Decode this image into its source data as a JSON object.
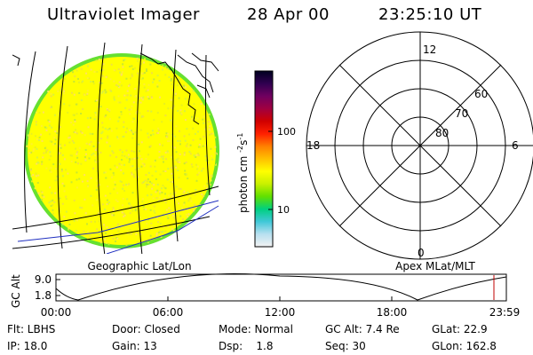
{
  "header": {
    "instrument": "Ultraviolet Imager",
    "date": "28 Apr 00",
    "time": "23:25:10 UT"
  },
  "colorbar": {
    "unit_label": "photon cm",
    "unit_exp1": "-2",
    "unit_s": "s",
    "unit_exp2": "-1",
    "tick_100": "100",
    "tick_10": "10",
    "stops": [
      "#f2f2f2",
      "#b8e0f0",
      "#40c8d8",
      "#00d080",
      "#60e000",
      "#c8f000",
      "#ffff00",
      "#ffc000",
      "#ff8000",
      "#ff2000",
      "#d00000",
      "#a00040",
      "#700060",
      "#300050",
      "#000020"
    ]
  },
  "geo_panel": {
    "caption": "Geographic Lat/Lon"
  },
  "polar_panel": {
    "caption": "Apex MLat/MLT",
    "mlt_labels": {
      "top": "12",
      "left": "18",
      "right": "6",
      "bottom": "0"
    },
    "lat_labels": [
      "60",
      "70",
      "80"
    ]
  },
  "altitude_plot": {
    "ylabel": "GC Alt",
    "yticks": [
      "9.0",
      "1.8"
    ],
    "xticks": [
      "00:00",
      "06:00",
      "12:00",
      "18:00",
      "23:59"
    ],
    "marker_color": "#c00000"
  },
  "info": {
    "flt": "Flt: LBHS",
    "door": "Door: Closed",
    "mode": "Mode: Normal",
    "gc_alt": "GC Alt: 7.4 Re",
    "glat": "GLat:  22.9",
    "ip": "IP: 18.0",
    "gain": "Gain: 13",
    "dsp": "Dsp:    1.8",
    "seq": "Seq: 30",
    "glon": "GLon: 162.8"
  }
}
